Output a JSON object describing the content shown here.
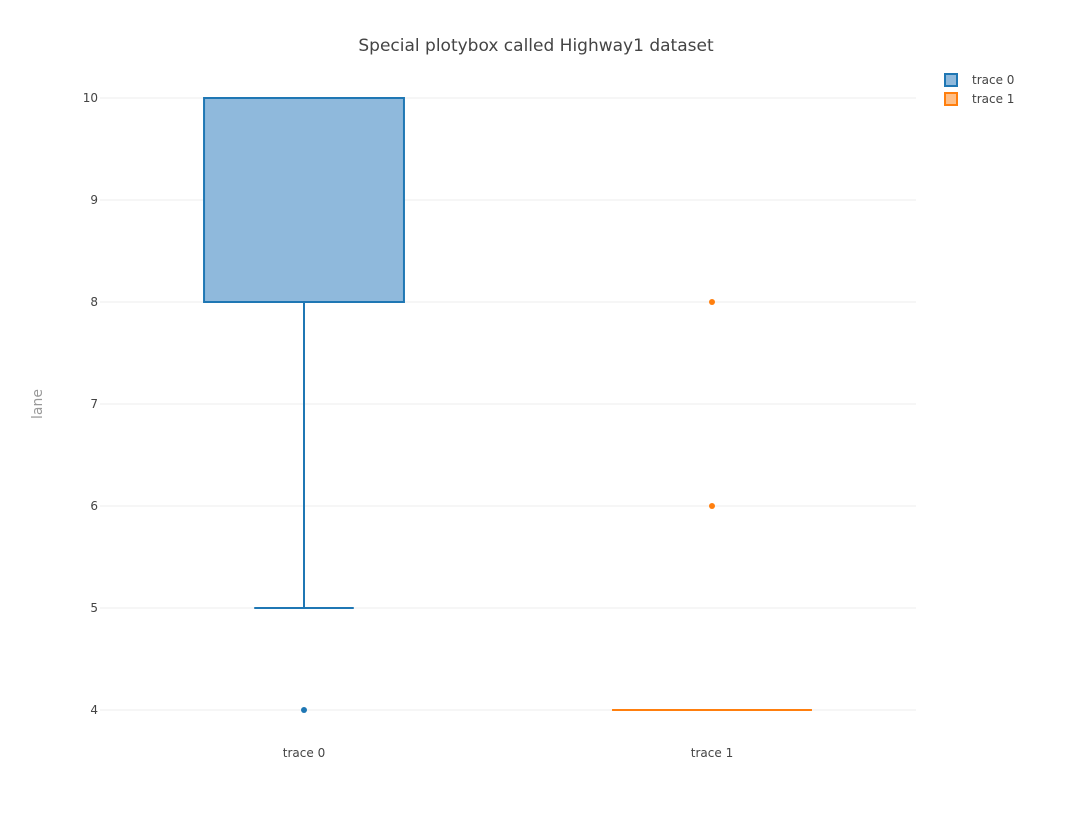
{
  "chart_data": {
    "type": "box",
    "title": "Special plotybox called Highway1 dataset",
    "xlabel": "",
    "ylabel": "lane",
    "ylim": [
      3.7,
      10.3
    ],
    "y_ticks": [
      4,
      5,
      6,
      7,
      8,
      9,
      10
    ],
    "grid": true,
    "legend_position": "top-right",
    "categories": [
      "trace 0",
      "trace 1"
    ],
    "series": [
      {
        "name": "trace 0",
        "color": "#1f77b4",
        "fill": "#8fb9dc",
        "min": 5,
        "q1": 8,
        "median": 10,
        "q3": 10,
        "max": 10,
        "outliers": [
          4
        ]
      },
      {
        "name": "trace 1",
        "color": "#ff7f0e",
        "fill": "#ffbf87",
        "min": 4,
        "q1": 4,
        "median": 4,
        "q3": 4,
        "max": 4,
        "outliers": [
          6,
          8
        ]
      }
    ]
  }
}
